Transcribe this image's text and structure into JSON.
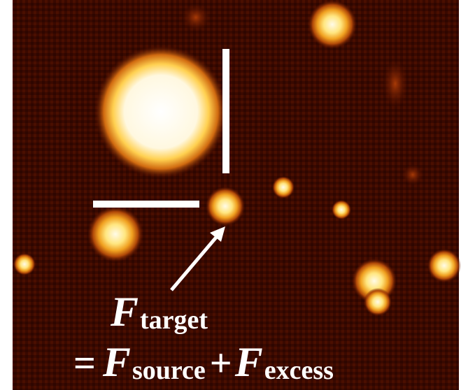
{
  "label": {
    "symbol": "F",
    "subscript": "target"
  },
  "equation": {
    "equals": "=",
    "source_symbol": "F",
    "source_subscript": "source",
    "plus": "+",
    "excess_symbol": "F",
    "excess_subscript": "excess"
  }
}
